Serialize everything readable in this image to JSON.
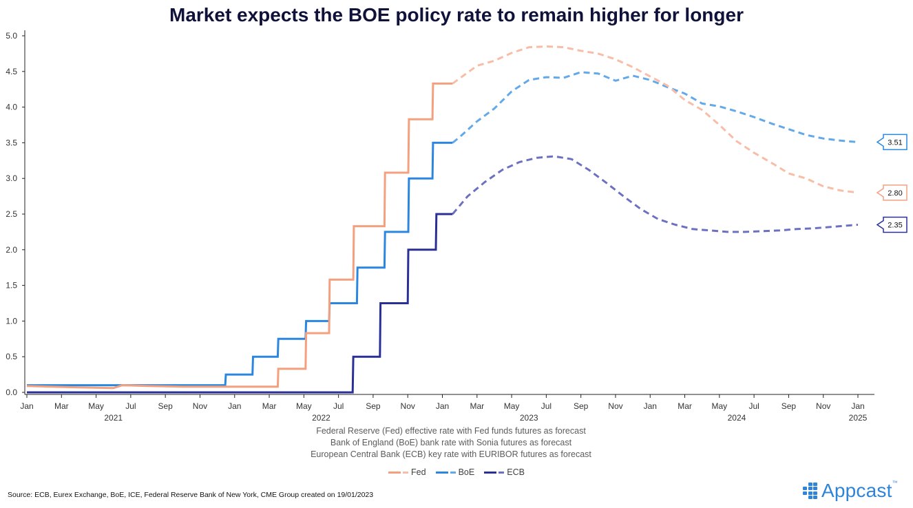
{
  "chart_data": {
    "type": "line",
    "title": "Market expects the BOE policy rate to remain higher for longer",
    "subtitle_lines": [
      "Federal Reserve (Fed) effective rate with Fed funds futures as forecast",
      "Bank of England (BoE) bank rate with Sonia futures as forecast",
      "European Central Bank (ECB) key rate with EURIBOR futures as forecast"
    ],
    "ylim": [
      0,
      5.0
    ],
    "y_ticks": [
      "0.0",
      "0.5",
      "1.0",
      "1.5",
      "2.0",
      "2.5",
      "3.0",
      "3.5",
      "4.0",
      "4.5",
      "5.0"
    ],
    "x_start": "2021-01",
    "x_end": "2025-01",
    "x_month_ticks": [
      "Jan",
      "Mar",
      "May",
      "Jul",
      "Sep",
      "Nov",
      "Jan",
      "Mar",
      "May",
      "Jul",
      "Sep",
      "Nov",
      "Jan",
      "Mar",
      "May",
      "Jul",
      "Sep",
      "Nov",
      "Jan",
      "Mar",
      "May",
      "Jul",
      "Sep",
      "Nov",
      "Jan"
    ],
    "x_year_labels": [
      {
        "label": "2021",
        "at": "2021-06"
      },
      {
        "label": "2022",
        "at": "2022-06"
      },
      {
        "label": "2023",
        "at": "2023-06"
      },
      {
        "label": "2024",
        "at": "2024-06"
      },
      {
        "label": "2025",
        "at": "2025-01"
      }
    ],
    "legend_position": "bottom",
    "series": [
      {
        "name": "Fed",
        "color": "#f4a07f",
        "forecast_color": "#f7bda6",
        "end_label": "2.80",
        "actual": [
          [
            "2021-01-01",
            0.09
          ],
          [
            "2021-02-15",
            0.08
          ],
          [
            "2021-04-01",
            0.07
          ],
          [
            "2021-06-01",
            0.06
          ],
          [
            "2021-06-17",
            0.1
          ],
          [
            "2021-08-01",
            0.09
          ],
          [
            "2021-10-01",
            0.08
          ],
          [
            "2021-12-01",
            0.08
          ],
          [
            "2022-03-16",
            0.08
          ],
          [
            "2022-03-17",
            0.33
          ],
          [
            "2022-05-04",
            0.33
          ],
          [
            "2022-05-05",
            0.83
          ],
          [
            "2022-06-15",
            0.83
          ],
          [
            "2022-06-16",
            1.58
          ],
          [
            "2022-07-27",
            1.58
          ],
          [
            "2022-07-28",
            2.33
          ],
          [
            "2022-09-21",
            2.33
          ],
          [
            "2022-09-22",
            3.08
          ],
          [
            "2022-11-02",
            3.08
          ],
          [
            "2022-11-03",
            3.83
          ],
          [
            "2022-12-14",
            3.83
          ],
          [
            "2022-12-15",
            4.33
          ],
          [
            "2023-01-19",
            4.33
          ]
        ],
        "forecast": [
          [
            "2023-01-19",
            4.33
          ],
          [
            "2023-03-01",
            4.58
          ],
          [
            "2023-04-01",
            4.65
          ],
          [
            "2023-05-01",
            4.76
          ],
          [
            "2023-06-01",
            4.84
          ],
          [
            "2023-07-01",
            4.85
          ],
          [
            "2023-08-01",
            4.84
          ],
          [
            "2023-09-01",
            4.79
          ],
          [
            "2023-10-01",
            4.75
          ],
          [
            "2023-11-01",
            4.67
          ],
          [
            "2023-12-01",
            4.56
          ],
          [
            "2024-01-01",
            4.43
          ],
          [
            "2024-02-01",
            4.3
          ],
          [
            "2024-03-01",
            4.1
          ],
          [
            "2024-04-01",
            3.96
          ],
          [
            "2024-05-01",
            3.75
          ],
          [
            "2024-06-01",
            3.52
          ],
          [
            "2024-07-01",
            3.36
          ],
          [
            "2024-08-01",
            3.22
          ],
          [
            "2024-09-01",
            3.07
          ],
          [
            "2024-10-01",
            3.0
          ],
          [
            "2024-11-01",
            2.89
          ],
          [
            "2024-12-01",
            2.83
          ],
          [
            "2025-01-01",
            2.8
          ]
        ]
      },
      {
        "name": "BoE",
        "color": "#2a86de",
        "forecast_color": "#63a9ea",
        "end_label": "3.51",
        "actual": [
          [
            "2021-01-01",
            0.1
          ],
          [
            "2021-12-15",
            0.1
          ],
          [
            "2021-12-16",
            0.25
          ],
          [
            "2022-02-02",
            0.25
          ],
          [
            "2022-02-03",
            0.5
          ],
          [
            "2022-03-16",
            0.5
          ],
          [
            "2022-03-17",
            0.75
          ],
          [
            "2022-05-04",
            0.75
          ],
          [
            "2022-05-05",
            1.0
          ],
          [
            "2022-06-15",
            1.0
          ],
          [
            "2022-06-16",
            1.25
          ],
          [
            "2022-08-03",
            1.25
          ],
          [
            "2022-08-04",
            1.75
          ],
          [
            "2022-09-21",
            1.75
          ],
          [
            "2022-09-22",
            2.25
          ],
          [
            "2022-11-02",
            2.25
          ],
          [
            "2022-11-03",
            3.0
          ],
          [
            "2022-12-14",
            3.0
          ],
          [
            "2022-12-15",
            3.5
          ],
          [
            "2023-01-19",
            3.5
          ]
        ],
        "forecast": [
          [
            "2023-01-19",
            3.5
          ],
          [
            "2023-02-01",
            3.58
          ],
          [
            "2023-03-01",
            3.8
          ],
          [
            "2023-04-01",
            3.98
          ],
          [
            "2023-05-01",
            4.22
          ],
          [
            "2023-06-01",
            4.38
          ],
          [
            "2023-07-01",
            4.42
          ],
          [
            "2023-08-01",
            4.41
          ],
          [
            "2023-09-01",
            4.49
          ],
          [
            "2023-10-01",
            4.47
          ],
          [
            "2023-11-01",
            4.37
          ],
          [
            "2023-12-01",
            4.44
          ],
          [
            "2024-01-01",
            4.38
          ],
          [
            "2024-02-01",
            4.28
          ],
          [
            "2024-03-01",
            4.19
          ],
          [
            "2024-04-01",
            4.05
          ],
          [
            "2024-05-01",
            4.01
          ],
          [
            "2024-06-01",
            3.94
          ],
          [
            "2024-07-01",
            3.86
          ],
          [
            "2024-08-01",
            3.77
          ],
          [
            "2024-09-01",
            3.69
          ],
          [
            "2024-10-01",
            3.61
          ],
          [
            "2024-11-01",
            3.56
          ],
          [
            "2024-12-01",
            3.53
          ],
          [
            "2025-01-01",
            3.51
          ]
        ]
      },
      {
        "name": "ECB",
        "color": "#2a2f96",
        "forecast_color": "#6b70c0",
        "end_label": "2.35",
        "actual": [
          [
            "2021-01-01",
            0.0
          ],
          [
            "2022-07-26",
            0.0
          ],
          [
            "2022-07-27",
            0.5
          ],
          [
            "2022-09-13",
            0.5
          ],
          [
            "2022-09-14",
            1.25
          ],
          [
            "2022-11-01",
            1.25
          ],
          [
            "2022-11-02",
            2.0
          ],
          [
            "2022-12-20",
            2.0
          ],
          [
            "2022-12-21",
            2.5
          ],
          [
            "2023-01-19",
            2.5
          ]
        ],
        "forecast": [
          [
            "2023-01-19",
            2.5
          ],
          [
            "2023-02-15",
            2.75
          ],
          [
            "2023-03-15",
            2.95
          ],
          [
            "2023-04-15",
            3.12
          ],
          [
            "2023-05-15",
            3.23
          ],
          [
            "2023-06-15",
            3.29
          ],
          [
            "2023-07-15",
            3.31
          ],
          [
            "2023-08-15",
            3.27
          ],
          [
            "2023-09-15",
            3.12
          ],
          [
            "2023-10-15",
            2.94
          ],
          [
            "2023-11-15",
            2.75
          ],
          [
            "2023-12-15",
            2.57
          ],
          [
            "2024-01-15",
            2.43
          ],
          [
            "2024-02-15",
            2.35
          ],
          [
            "2024-03-15",
            2.29
          ],
          [
            "2024-04-15",
            2.27
          ],
          [
            "2024-05-15",
            2.25
          ],
          [
            "2024-06-15",
            2.25
          ],
          [
            "2024-07-15",
            2.26
          ],
          [
            "2024-08-15",
            2.27
          ],
          [
            "2024-09-15",
            2.29
          ],
          [
            "2024-10-15",
            2.3
          ],
          [
            "2024-11-15",
            2.32
          ],
          [
            "2024-12-15",
            2.34
          ],
          [
            "2025-01-01",
            2.35
          ]
        ]
      }
    ]
  },
  "footer": {
    "source": "Source: ECB, Eurex Exchange, BoE, ICE, Federal Reserve Bank of New York, CME Group created on 19/01/2023",
    "brand": "Appcast",
    "brand_mark": "™"
  }
}
